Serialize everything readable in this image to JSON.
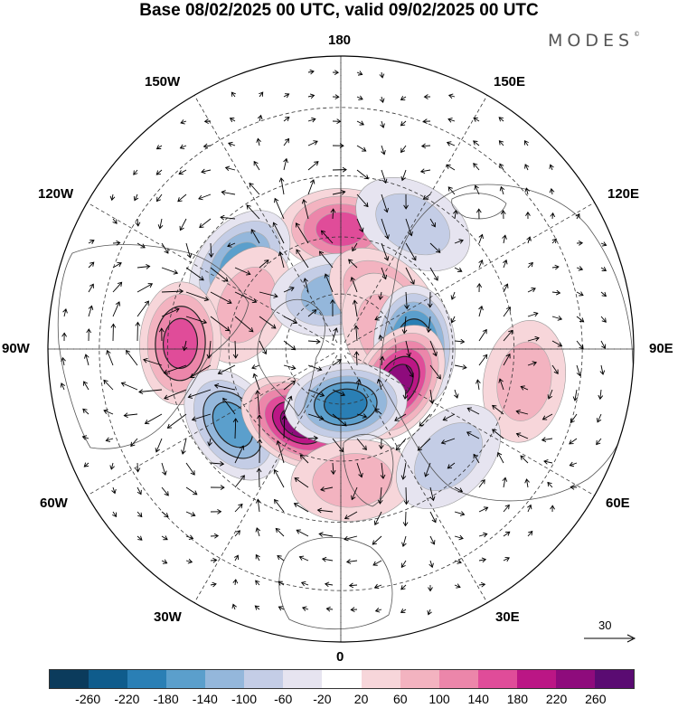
{
  "title": "Base 08/02/2025 00 UTC, valid 09/02/2025 00 UTC",
  "brand": "MODES",
  "brand_mark": "©",
  "longitude_labels": {
    "top": "180",
    "top_right": "150E",
    "right_upper": "120E",
    "right": "90E",
    "right_lower": "60E",
    "bottom_right": "30E",
    "bottom": "0",
    "bottom_left": "30W",
    "left_lower": "60W",
    "left": "90W",
    "left_upper": "120W",
    "top_left": "150W"
  },
  "reference_vector": {
    "value": "30",
    "icon": "right-arrow-icon"
  },
  "colorbar": {
    "levels": [
      "-260",
      "-220",
      "-180",
      "-140",
      "-100",
      "-60",
      "-20",
      "20",
      "60",
      "100",
      "140",
      "180",
      "220",
      "260"
    ],
    "colors": [
      "#0b3b5c",
      "#0f5c8c",
      "#2a7fb5",
      "#5b9fcc",
      "#94b7db",
      "#c4cde6",
      "#e6e4f0",
      "#ffffff",
      "#f7d6da",
      "#f3b3c0",
      "#ec86aa",
      "#e04c99",
      "#bb1685",
      "#8e0b7c",
      "#5a0b72"
    ]
  },
  "anomaly_centers": [
    {
      "lon": 180,
      "lat": 58,
      "value": 140
    },
    {
      "lon": 150,
      "lat": 52,
      "value": -80
    },
    {
      "lon": -130,
      "lat": 55,
      "value": -150
    },
    {
      "lon": -115,
      "lat": 62,
      "value": 70
    },
    {
      "lon": -170,
      "lat": 75,
      "value": -110
    },
    {
      "lon": 140,
      "lat": 72,
      "value": 120
    },
    {
      "lon": 110,
      "lat": 77,
      "value": 90
    },
    {
      "lon": 92,
      "lat": 70,
      "value": -220
    },
    {
      "lon": 60,
      "lat": 72,
      "value": 240
    },
    {
      "lon": -92,
      "lat": 48,
      "value": 170
    },
    {
      "lon": -55,
      "lat": 55,
      "value": -170
    },
    {
      "lon": -30,
      "lat": 67,
      "value": 240
    },
    {
      "lon": 5,
      "lat": 75,
      "value": -190
    },
    {
      "lon": 5,
      "lat": 55,
      "value": 90
    },
    {
      "lon": 80,
      "lat": 42,
      "value": 70
    },
    {
      "lon": 45,
      "lat": 50,
      "value": -70
    }
  ]
}
